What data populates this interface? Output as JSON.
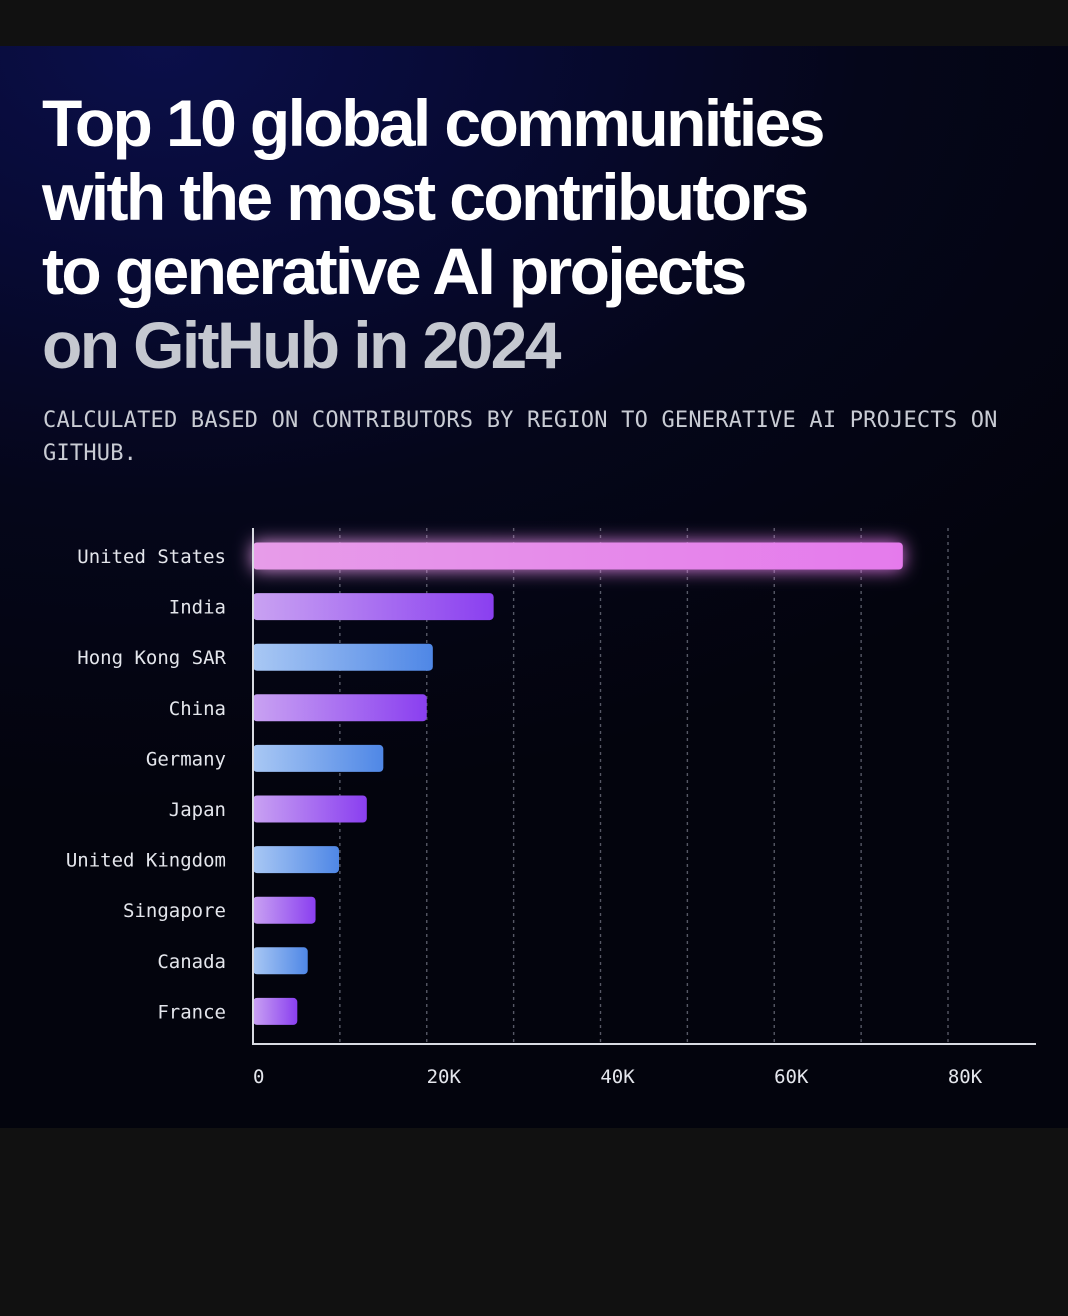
{
  "header": {
    "title_line_1": "Top 10 global communities",
    "title_line_2": "with the most contributors",
    "title_line_3": "to generative AI projects",
    "title_line_4": "on GitHub in 2024",
    "subtitle": "CALCULATED BASED ON CONTRIBUTORS BY REGION TO GENERATIVE AI PROJECTS ON GITHUB."
  },
  "colors": {
    "background": "#05061a",
    "outer_background": "#111111",
    "highlight_bar_start": "#e79ce9",
    "highlight_bar_end": "#e57aec",
    "purple_bar_start": "#c9a2f2",
    "purple_bar_end": "#8a3ff0",
    "blue_bar_start": "#a9c8f4",
    "blue_bar_end": "#4f87e6",
    "axis": "#d9dbe2",
    "grid": "#6b6e7c"
  },
  "chart_data": {
    "type": "bar",
    "orientation": "horizontal",
    "title": "Top 10 global communities with the most contributors to generative AI projects on GitHub in 2024",
    "subtitle": "Calculated based on contributors by region to generative AI projects on GitHub.",
    "xlabel": "",
    "ylabel": "",
    "categories": [
      "United States",
      "India",
      "Hong Kong SAR",
      "China",
      "Germany",
      "Japan",
      "United Kingdom",
      "Singapore",
      "Canada",
      "France"
    ],
    "values": [
      74800,
      27700,
      20700,
      20000,
      15000,
      13100,
      9900,
      7200,
      6300,
      5100
    ],
    "bar_styles": [
      "highlight",
      "purple",
      "blue",
      "purple",
      "blue",
      "purple",
      "blue",
      "purple",
      "blue",
      "purple"
    ],
    "xlim": [
      0,
      90000
    ],
    "x_ticks": [
      0,
      20000,
      40000,
      60000,
      80000
    ],
    "x_tick_labels": [
      "0",
      "20K",
      "40K",
      "60K",
      "80K"
    ],
    "gridlines": [
      10000,
      20000,
      30000,
      40000,
      50000,
      60000,
      70000,
      80000
    ],
    "grid": true,
    "grid_style": "dashed-vertical",
    "legend": "none"
  }
}
